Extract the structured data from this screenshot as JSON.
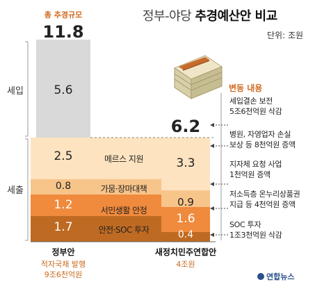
{
  "title_plain": "정부-야당 ",
  "title_bold": "추경예산안 비교",
  "unit": "단위: 조원",
  "total_label": "총 추경규모",
  "total_value": "11.8",
  "right_total": "6.2",
  "sections": {
    "revenue": "세입",
    "expenditure": "세출"
  },
  "change_header": "변동 내용",
  "chart_data": {
    "type": "bar",
    "title": "정부-야당 추경예산안 비교",
    "unit": "조원",
    "categories": [
      "정부안",
      "새정치민주연합안"
    ],
    "series": [
      {
        "name": "세입",
        "values": [
          5.6,
          null
        ]
      },
      {
        "name": "메르스 지원",
        "values": [
          2.5,
          3.3
        ]
      },
      {
        "name": "가뭄·장마대책",
        "values": [
          0.8,
          0.9
        ]
      },
      {
        "name": "서민생활 안정",
        "values": [
          1.2,
          1.6
        ]
      },
      {
        "name": "안전·SOC 투자",
        "values": [
          1.7,
          0.4
        ]
      }
    ],
    "totals": [
      11.8,
      6.2
    ]
  },
  "segment_labels": [
    "2.5",
    "0.8",
    "1.2",
    "1.7",
    "3.3",
    "0.9",
    "1.6",
    "0.4",
    "5.6"
  ],
  "categories_mid": [
    "메르스 지원",
    "가뭄·장마대책",
    "서민생활 안정",
    "안전·SOC 투자"
  ],
  "notes": [
    {
      "line1": "세입결손 보전",
      "line2": "5조6천억원 삭감"
    },
    {
      "line1": "병원, 자영업자 손실",
      "line2": "보상 등 8천억원 증액"
    },
    {
      "line1": "지자체 요청 사업",
      "line2": "1천억원 증액"
    },
    {
      "line1": "저소득층 온누리상품권",
      "line2": "지급 등 4천억원 증액"
    },
    {
      "line1": "SOC 투자",
      "line2": "1조3천억원 삭감"
    }
  ],
  "x_labels": [
    {
      "name": "정부안",
      "sub1": "적자국채 발행",
      "sub2": "9조6천억원"
    },
    {
      "name": "새정치민주연합안",
      "sub1": "4조원",
      "sub2": ""
    }
  ],
  "logo": "연합뉴스",
  "colors": {
    "revenue": "#d9d9d9",
    "mers": "#fde3bf",
    "drought": "#f7c48a",
    "welfare": "#f08a3c",
    "soc": "#bf6a22",
    "accent": "#d2691e"
  }
}
